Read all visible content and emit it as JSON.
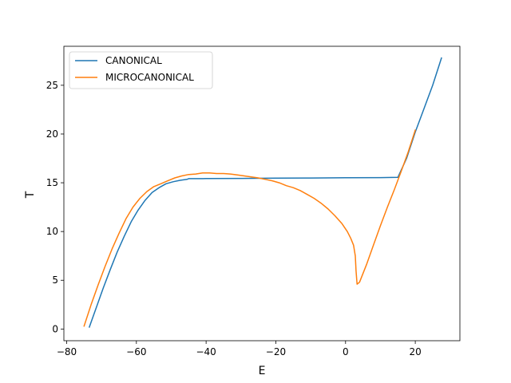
{
  "chart_data": {
    "type": "line",
    "xlabel": "E",
    "ylabel": "T",
    "xlim": [
      -80.8,
      32.8
    ],
    "ylim": [
      -1.2,
      29.0
    ],
    "xticks": [
      -80,
      -60,
      -40,
      -20,
      0,
      20
    ],
    "xtick_labels": [
      "−80",
      "−60",
      "−40",
      "−20",
      "0",
      "20"
    ],
    "yticks": [
      0,
      5,
      10,
      15,
      20,
      25
    ],
    "ytick_labels": [
      "0",
      "5",
      "10",
      "15",
      "20",
      "25"
    ],
    "grid": false,
    "legend_position": "top-left",
    "series": [
      {
        "name": "CANONICAL",
        "color": "#1f77b4",
        "points": [
          [
            -73.5,
            0.2
          ],
          [
            -71.5,
            2.2
          ],
          [
            -69.5,
            4.2
          ],
          [
            -67.5,
            6.1
          ],
          [
            -65.5,
            7.9
          ],
          [
            -63.5,
            9.5
          ],
          [
            -61.5,
            11.0
          ],
          [
            -59.5,
            12.2
          ],
          [
            -57.5,
            13.2
          ],
          [
            -55.5,
            14.0
          ],
          [
            -53.5,
            14.5
          ],
          [
            -51.5,
            14.9
          ],
          [
            -49.5,
            15.1
          ],
          [
            -47.5,
            15.25
          ],
          [
            -45.5,
            15.35
          ],
          [
            -45.0,
            15.42
          ],
          [
            -40.0,
            15.43
          ],
          [
            -30.0,
            15.45
          ],
          [
            -20.0,
            15.47
          ],
          [
            -10.0,
            15.49
          ],
          [
            0.0,
            15.51
          ],
          [
            10.0,
            15.53
          ],
          [
            15.0,
            15.55
          ],
          [
            17.5,
            17.5
          ],
          [
            20.0,
            20.2
          ],
          [
            22.5,
            22.6
          ],
          [
            25.0,
            25.0
          ],
          [
            27.5,
            27.8
          ]
        ]
      },
      {
        "name": "MICROCANONICAL",
        "color": "#ff7f0e",
        "points": [
          [
            -75.0,
            0.3
          ],
          [
            -73.0,
            2.5
          ],
          [
            -71.0,
            4.5
          ],
          [
            -69.0,
            6.4
          ],
          [
            -67.0,
            8.2
          ],
          [
            -65.0,
            9.8
          ],
          [
            -63.0,
            11.3
          ],
          [
            -61.0,
            12.5
          ],
          [
            -59.0,
            13.4
          ],
          [
            -57.0,
            14.1
          ],
          [
            -55.0,
            14.6
          ],
          [
            -53.0,
            14.9
          ],
          [
            -51.0,
            15.2
          ],
          [
            -49.0,
            15.5
          ],
          [
            -47.0,
            15.7
          ],
          [
            -45.0,
            15.85
          ],
          [
            -43.0,
            15.9
          ],
          [
            -41.0,
            16.0
          ],
          [
            -39.0,
            16.0
          ],
          [
            -37.0,
            15.95
          ],
          [
            -35.0,
            15.95
          ],
          [
            -33.0,
            15.9
          ],
          [
            -31.0,
            15.8
          ],
          [
            -29.0,
            15.7
          ],
          [
            -27.0,
            15.6
          ],
          [
            -25.0,
            15.5
          ],
          [
            -23.0,
            15.35
          ],
          [
            -21.0,
            15.2
          ],
          [
            -19.0,
            15.0
          ],
          [
            -17.0,
            14.7
          ],
          [
            -15.0,
            14.5
          ],
          [
            -13.0,
            14.2
          ],
          [
            -11.0,
            13.8
          ],
          [
            -9.0,
            13.4
          ],
          [
            -7.0,
            12.9
          ],
          [
            -5.0,
            12.3
          ],
          [
            -3.0,
            11.6
          ],
          [
            -1.0,
            10.8
          ],
          [
            0.5,
            10.0
          ],
          [
            1.5,
            9.3
          ],
          [
            2.3,
            8.6
          ],
          [
            2.8,
            7.5
          ],
          [
            3.0,
            6.0
          ],
          [
            3.3,
            4.6
          ],
          [
            4.0,
            4.8
          ],
          [
            6.0,
            6.6
          ],
          [
            8.0,
            8.6
          ],
          [
            10.0,
            10.6
          ],
          [
            12.0,
            12.5
          ],
          [
            14.0,
            14.3
          ],
          [
            16.0,
            16.2
          ],
          [
            18.0,
            18.2
          ],
          [
            20.0,
            20.4
          ]
        ]
      }
    ]
  }
}
